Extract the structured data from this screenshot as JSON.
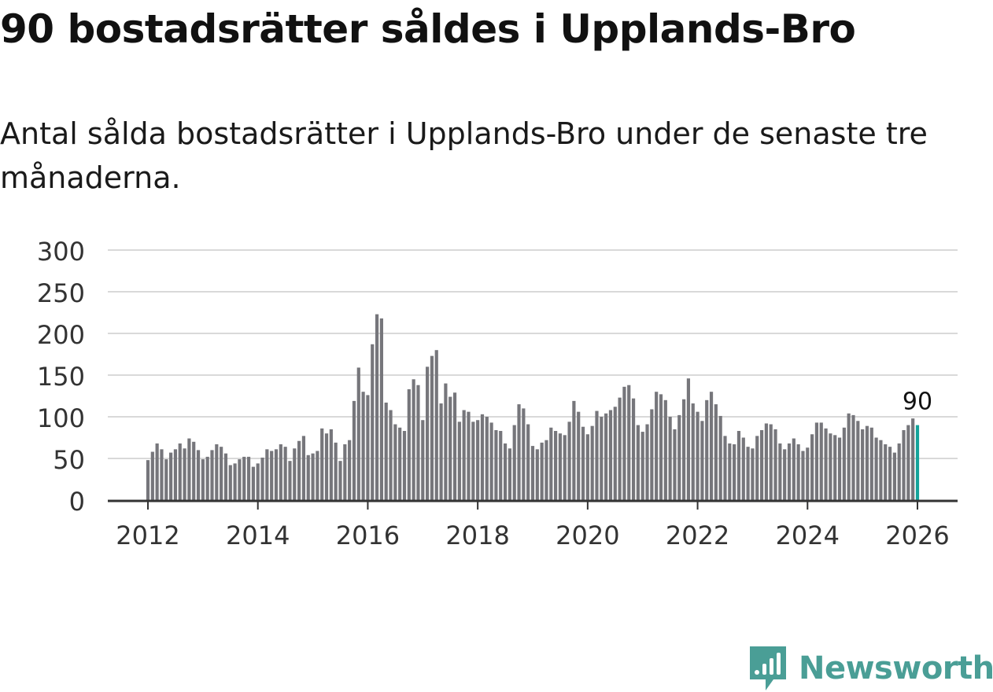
{
  "header": {
    "title": "90 bostadsrätter såldes i Upplands-Bro",
    "subtitle": "Antal sålda bostadsrätter i Upplands-Bro under de senaste tre månaderna."
  },
  "brand": {
    "name": "Newsworthy",
    "color": "#4a9e96"
  },
  "colors": {
    "bar": "#76767b",
    "highlight": "#14a39a",
    "grid": "#d9d9d9",
    "axis": "#333333"
  },
  "chart_data": {
    "type": "bar",
    "title": "90 bostadsrätter såldes i Upplands-Bro",
    "subtitle": "Antal sålda bostadsrätter i Upplands-Bro under de senaste tre månaderna.",
    "xlabel": "",
    "ylabel": "",
    "ylim": [
      0,
      300
    ],
    "yticks": [
      0,
      50,
      100,
      150,
      200,
      250,
      300
    ],
    "xticks": [
      2012,
      2014,
      2016,
      2018,
      2020,
      2022,
      2024,
      2026
    ],
    "xlim": [
      2011.75,
      2026.75
    ],
    "grid": true,
    "x_start": 2012,
    "x_step": 0.0833333,
    "values": [
      48,
      58,
      68,
      61,
      49,
      57,
      61,
      68,
      62,
      74,
      70,
      60,
      49,
      52,
      60,
      67,
      64,
      56,
      42,
      44,
      49,
      52,
      52,
      40,
      44,
      51,
      61,
      59,
      61,
      67,
      64,
      47,
      62,
      71,
      77,
      54,
      56,
      59,
      86,
      80,
      85,
      69,
      47,
      67,
      72,
      119,
      159,
      130,
      126,
      187,
      223,
      218,
      117,
      108,
      91,
      87,
      83,
      133,
      145,
      138,
      96,
      160,
      173,
      180,
      116,
      140,
      124,
      129,
      94,
      108,
      106,
      94,
      96,
      103,
      100,
      93,
      84,
      83,
      68,
      62,
      90,
      115,
      110,
      91,
      65,
      61,
      69,
      72,
      87,
      83,
      80,
      78,
      94,
      119,
      106,
      88,
      79,
      89,
      107,
      100,
      104,
      108,
      112,
      123,
      136,
      138,
      122,
      90,
      82,
      91,
      109,
      130,
      127,
      120,
      100,
      85,
      102,
      121,
      146,
      116,
      106,
      95,
      120,
      130,
      115,
      101,
      77,
      68,
      67,
      83,
      75,
      64,
      62,
      77,
      84,
      92,
      91,
      85,
      68,
      61,
      68,
      74,
      67,
      59,
      63,
      79,
      93,
      93,
      86,
      80,
      78,
      75,
      87,
      104,
      102,
      95,
      85,
      89,
      87,
      75,
      72,
      67,
      64,
      57,
      68,
      84,
      90,
      98,
      90
    ],
    "highlight_last": true,
    "annotation": {
      "label": "90",
      "target": "last-bar"
    }
  }
}
